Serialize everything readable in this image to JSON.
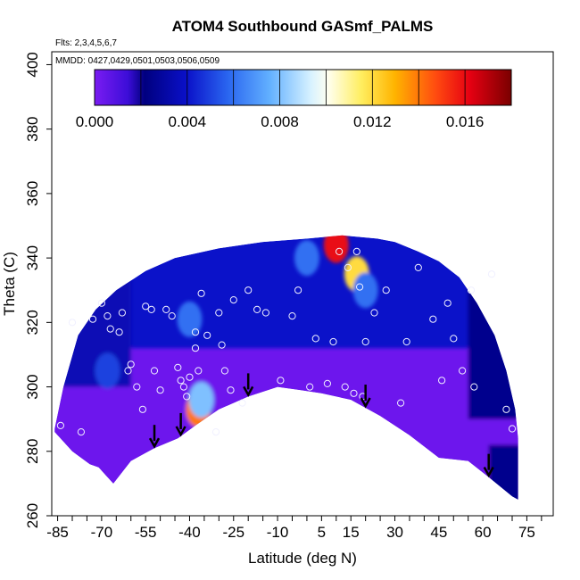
{
  "chart_data": {
    "type": "heatmap",
    "title": "ATOM4 Southbound GASmf_PALMS",
    "flights_label": "Flts: 2,3,4,5,6,7",
    "dates_label": "MMDD: 0427,0429,0501,0503,0506,0509",
    "xlabel": "Latitude (deg N)",
    "ylabel": "Theta (C)",
    "xlim": [
      -87,
      84
    ],
    "ylim": [
      260,
      404
    ],
    "x_ticks": [
      -85,
      -70,
      -55,
      -40,
      -25,
      -10,
      5,
      15,
      30,
      45,
      60,
      75
    ],
    "y_ticks": [
      260,
      280,
      300,
      320,
      340,
      360,
      380,
      400
    ],
    "colorbar": {
      "min": 0.0,
      "max": 0.018,
      "tick_values": [
        0.0,
        0.004,
        0.008,
        0.012,
        0.016
      ],
      "tick_labels": [
        "0.000",
        "0.004",
        "0.008",
        "0.012",
        "0.016"
      ],
      "colors": [
        "#7a1cf2",
        "#00007f",
        "#1a33e6",
        "#3b8cf5",
        "#bfe8ff",
        "#fffff0",
        "#ffe040",
        "#ffa500",
        "#ff4500",
        "#e60012",
        "#7f0000"
      ]
    },
    "arrows_latitude": [
      -52,
      -43,
      -20,
      20,
      62
    ],
    "field_lower_boundary": [
      [
        -86,
        286
      ],
      [
        -80,
        280
      ],
      [
        -74,
        276
      ],
      [
        -71,
        275
      ],
      [
        -69,
        273
      ],
      [
        -66,
        270
      ],
      [
        -60,
        277
      ],
      [
        -52,
        281
      ],
      [
        -44,
        284
      ],
      [
        -38,
        288
      ],
      [
        -30,
        293
      ],
      [
        -20,
        297
      ],
      [
        -10,
        300
      ],
      [
        -2,
        299
      ],
      [
        5,
        298
      ],
      [
        15,
        296
      ],
      [
        25,
        291
      ],
      [
        35,
        285
      ],
      [
        45,
        278
      ],
      [
        55,
        277
      ],
      [
        62,
        272
      ],
      [
        70,
        266
      ],
      [
        72,
        265
      ]
    ],
    "field_upper_boundary": [
      [
        -86,
        287
      ],
      [
        -83,
        300
      ],
      [
        -78,
        316
      ],
      [
        -72,
        324
      ],
      [
        -65,
        330
      ],
      [
        -55,
        336
      ],
      [
        -45,
        340
      ],
      [
        -30,
        343
      ],
      [
        -15,
        345
      ],
      [
        0,
        346
      ],
      [
        12,
        347
      ],
      [
        24,
        346
      ],
      [
        30,
        345
      ],
      [
        38,
        342
      ],
      [
        45,
        339
      ],
      [
        52,
        334
      ],
      [
        58,
        326
      ],
      [
        64,
        316
      ],
      [
        68,
        305
      ],
      [
        71,
        293
      ],
      [
        72,
        284
      ]
    ],
    "hotspots": [
      {
        "lat": 17,
        "theta": 335,
        "value": 0.012
      },
      {
        "lat": 10,
        "theta": 344,
        "value": 0.016
      },
      {
        "lat": -37,
        "theta": 293,
        "value": 0.014
      },
      {
        "lat": -36,
        "theta": 296,
        "value": 0.008
      },
      {
        "lat": -40,
        "theta": 321,
        "value": 0.006
      },
      {
        "lat": -68,
        "theta": 305,
        "value": 0.005
      },
      {
        "lat": 0,
        "theta": 340,
        "value": 0.006
      },
      {
        "lat": 20,
        "theta": 330,
        "value": 0.006
      }
    ],
    "sample_points": [
      [
        -84,
        288
      ],
      [
        -80,
        320
      ],
      [
        -77,
        286
      ],
      [
        -73,
        321
      ],
      [
        -70,
        326
      ],
      [
        -68,
        322
      ],
      [
        -67,
        318
      ],
      [
        -64,
        317
      ],
      [
        -63,
        323
      ],
      [
        -61,
        305
      ],
      [
        -60,
        307
      ],
      [
        -58,
        300
      ],
      [
        -56,
        293
      ],
      [
        -55,
        325
      ],
      [
        -53,
        324
      ],
      [
        -52,
        305
      ],
      [
        -50,
        299
      ],
      [
        -48,
        324
      ],
      [
        -46,
        322
      ],
      [
        -44,
        306
      ],
      [
        -43,
        302
      ],
      [
        -42,
        300
      ],
      [
        -41,
        297
      ],
      [
        -40,
        303
      ],
      [
        -38,
        317
      ],
      [
        -38,
        312
      ],
      [
        -37,
        305
      ],
      [
        -36,
        329
      ],
      [
        -34,
        316
      ],
      [
        -31,
        286
      ],
      [
        -30,
        323
      ],
      [
        -29,
        313
      ],
      [
        -28,
        305
      ],
      [
        -26,
        299
      ],
      [
        -25,
        327
      ],
      [
        -22,
        295
      ],
      [
        -20,
        330
      ],
      [
        -17,
        324
      ],
      [
        -14,
        323
      ],
      [
        -9,
        302
      ],
      [
        -5,
        322
      ],
      [
        -3,
        330
      ],
      [
        1,
        300
      ],
      [
        3,
        315
      ],
      [
        7,
        301
      ],
      [
        9,
        314
      ],
      [
        11,
        342
      ],
      [
        13,
        300
      ],
      [
        14,
        337
      ],
      [
        16,
        298
      ],
      [
        17,
        342
      ],
      [
        18,
        331
      ],
      [
        19,
        297
      ],
      [
        20,
        314
      ],
      [
        23,
        323
      ],
      [
        27,
        330
      ],
      [
        32,
        295
      ],
      [
        34,
        314
      ],
      [
        38,
        337
      ],
      [
        43,
        321
      ],
      [
        46,
        302
      ],
      [
        48,
        326
      ],
      [
        50,
        315
      ],
      [
        53,
        305
      ],
      [
        56,
        330
      ],
      [
        57,
        300
      ],
      [
        63,
        335
      ],
      [
        68,
        293
      ],
      [
        70,
        287
      ]
    ]
  }
}
